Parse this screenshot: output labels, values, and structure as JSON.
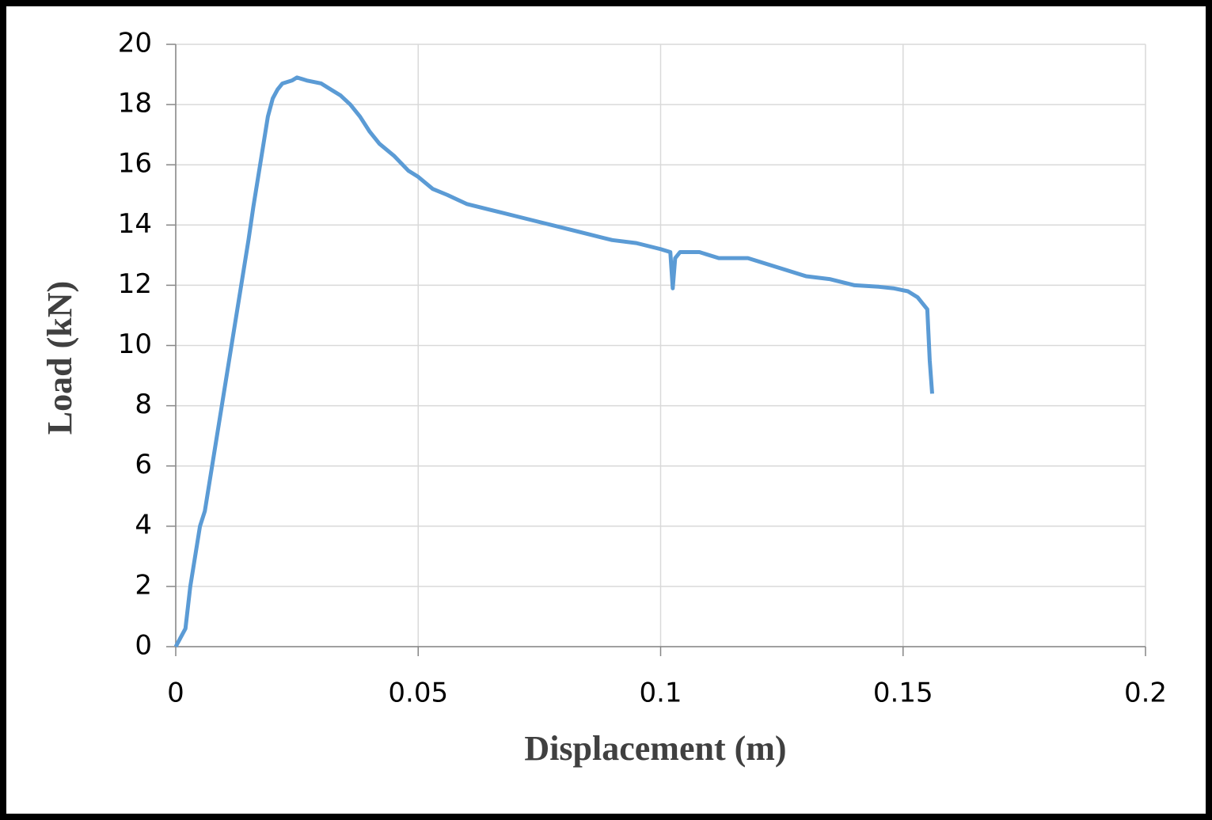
{
  "chart_data": {
    "type": "line",
    "x_label": "Displacement (m)",
    "y_label": "Load (kN)",
    "x": [
      0,
      0.001,
      0.002,
      0.003,
      0.004,
      0.005,
      0.006,
      0.007,
      0.008,
      0.009,
      0.01,
      0.011,
      0.012,
      0.013,
      0.014,
      0.015,
      0.016,
      0.017,
      0.018,
      0.019,
      0.02,
      0.021,
      0.022,
      0.024,
      0.025,
      0.027,
      0.03,
      0.032,
      0.034,
      0.036,
      0.038,
      0.04,
      0.042,
      0.045,
      0.048,
      0.05,
      0.053,
      0.056,
      0.06,
      0.065,
      0.07,
      0.075,
      0.08,
      0.085,
      0.09,
      0.095,
      0.1,
      0.102,
      0.1025,
      0.103,
      0.104,
      0.108,
      0.112,
      0.118,
      0.122,
      0.126,
      0.13,
      0.135,
      0.14,
      0.145,
      0.148,
      0.151,
      0.153,
      0.155,
      0.1555,
      0.156
    ],
    "series": [
      {
        "name": "Load",
        "color": "#5b9bd5",
        "values": [
          0,
          0.3,
          0.6,
          2,
          3,
          4,
          4.5,
          5.5,
          6.5,
          7.5,
          8.5,
          9.5,
          10.5,
          11.5,
          12.5,
          13.5,
          14.6,
          15.6,
          16.6,
          17.6,
          18.2,
          18.5,
          18.7,
          18.8,
          18.9,
          18.8,
          18.7,
          18.5,
          18.3,
          18.0,
          17.6,
          17.1,
          16.7,
          16.3,
          15.8,
          15.6,
          15.2,
          15.0,
          14.7,
          14.5,
          14.3,
          14.1,
          13.9,
          13.7,
          13.5,
          13.4,
          13.2,
          13.1,
          11.9,
          12.9,
          13.1,
          13.1,
          12.9,
          12.9,
          12.7,
          12.5,
          12.3,
          12.2,
          12.0,
          11.95,
          11.9,
          11.8,
          11.6,
          11.2,
          9.5,
          8.4
        ]
      }
    ],
    "xlim": [
      0,
      0.2
    ],
    "xticks": [
      0,
      0.05,
      0.1,
      0.15,
      0.2
    ],
    "ylim": [
      0,
      20
    ],
    "yticks": [
      0,
      2,
      4,
      6,
      8,
      10,
      12,
      14,
      16,
      18,
      20
    ],
    "grid": true
  }
}
